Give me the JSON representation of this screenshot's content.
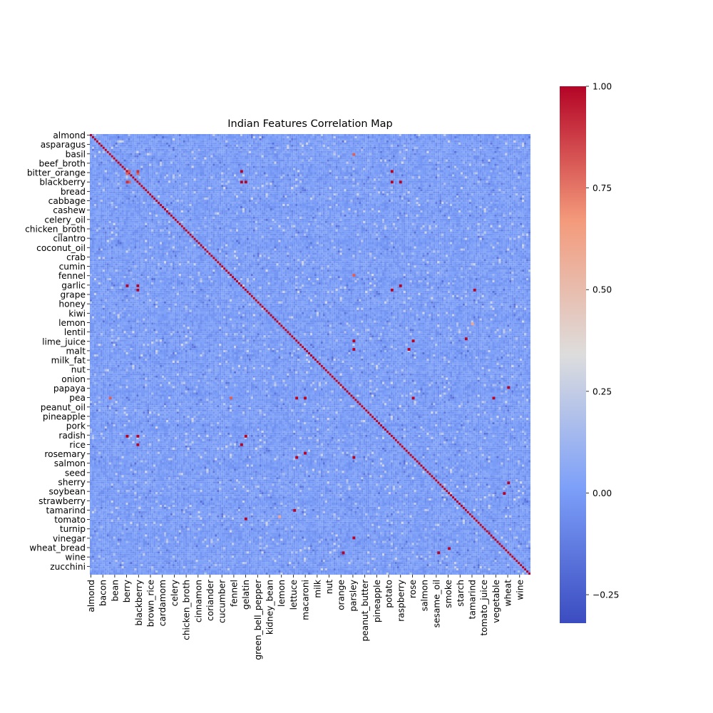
{
  "chart_data": {
    "type": "heatmap",
    "title": "Indian Features Correlation Map",
    "colormap": "coolwarm",
    "vmin": -0.32,
    "vmax": 1.0,
    "colorbar_ticks": [
      -0.25,
      0.0,
      0.25,
      0.5,
      0.75,
      1.0
    ],
    "colorbar_tick_labels": [
      "−0.25",
      "0.00",
      "0.25",
      "0.50",
      "0.75",
      "1.00"
    ],
    "n_features": 208,
    "y_tick_labels": [
      "almond",
      "asparagus",
      "basil",
      "beef_broth",
      "bitter_orange",
      "blackberry",
      "bread",
      "cabbage",
      "cashew",
      "celery_oil",
      "chicken_broth",
      "cilantro",
      "coconut_oil",
      "crab",
      "cumin",
      "fennel",
      "garlic",
      "grape",
      "honey",
      "kiwi",
      "lemon",
      "lentil",
      "lime_juice",
      "malt",
      "milk_fat",
      "nut",
      "onion",
      "papaya",
      "pea",
      "peanut_oil",
      "pineapple",
      "pork",
      "radish",
      "rice",
      "rosemary",
      "salmon",
      "seed",
      "sherry",
      "soybean",
      "strawberry",
      "tamarind",
      "tomato",
      "turnip",
      "vinegar",
      "wheat_bread",
      "wine",
      "zucchini"
    ],
    "x_tick_labels": [
      "almond",
      "bacon",
      "bean",
      "berry",
      "blackberry",
      "brown_rice",
      "cardamom",
      "celery",
      "chicken_broth",
      "cinnamon",
      "coriander",
      "cucumber",
      "fennel",
      "gelatin",
      "green_bell_pepper",
      "kidney_bean",
      "lemon",
      "lettuce",
      "macaroni",
      "milk",
      "nut",
      "orange",
      "parsley",
      "peanut_butter",
      "pineapple",
      "potato",
      "raspberry",
      "rose",
      "salmon",
      "sesame_oil",
      "smoke",
      "starch",
      "tamarind",
      "tomato_juice",
      "vegetable",
      "wheat",
      "wine"
    ],
    "diagonal_value": 1.0,
    "typical_off_diagonal_range": [
      -0.05,
      0.05
    ],
    "notable_correlations": [
      {
        "row": "bitter_orange",
        "col": "berry",
        "value": 0.8
      },
      {
        "row": "bitter_orange",
        "col": "blackberry",
        "value": 0.8
      },
      {
        "row": "blackberry",
        "col": "berry",
        "value": 0.9
      },
      {
        "row": "blackberry",
        "col": "gelatin",
        "value": 1.0
      },
      {
        "row": "blackberry",
        "col": "raspberry",
        "value": 1.0
      },
      {
        "row": "garlic",
        "col": "berry",
        "value": 1.0
      },
      {
        "row": "garlic",
        "col": "blackberry",
        "value": 1.0
      },
      {
        "row": "garlic",
        "col": "raspberry",
        "value": 1.0
      },
      {
        "row": "radish",
        "col": "berry",
        "value": 1.0
      },
      {
        "row": "radish",
        "col": "blackberry",
        "value": 1.0
      },
      {
        "row": "radish",
        "col": "gelatin",
        "value": 1.0
      },
      {
        "row": "tamarind",
        "col": "lettuce",
        "value": 1.0
      },
      {
        "row": "rosemary",
        "col": "macaroni",
        "value": 1.0
      },
      {
        "row": "vinegar",
        "col": "parsley",
        "value": 1.0
      },
      {
        "row": "wheat_bread",
        "col": "smoke",
        "value": 1.0
      },
      {
        "row": "pea",
        "col": "macaroni",
        "value": 1.0
      },
      {
        "row": "pea",
        "col": "rose",
        "value": 1.0
      },
      {
        "row": "lime_juice",
        "col": "parsley",
        "value": 1.0
      },
      {
        "row": "lime_juice",
        "col": "rose",
        "value": 1.0
      },
      {
        "row": "basil",
        "col": "parsley",
        "value": 0.8
      },
      {
        "row": "fennel",
        "col": "parsley",
        "value": 0.8
      },
      {
        "row": "sherry",
        "col": "wheat",
        "value": 1.0
      },
      {
        "row": "papaya",
        "col": "wheat",
        "value": 1.0
      },
      {
        "row": "tomato",
        "col": "gelatin",
        "value": 1.0
      },
      {
        "row": "lemon",
        "col": "tamarind",
        "value": 0.6
      }
    ]
  }
}
